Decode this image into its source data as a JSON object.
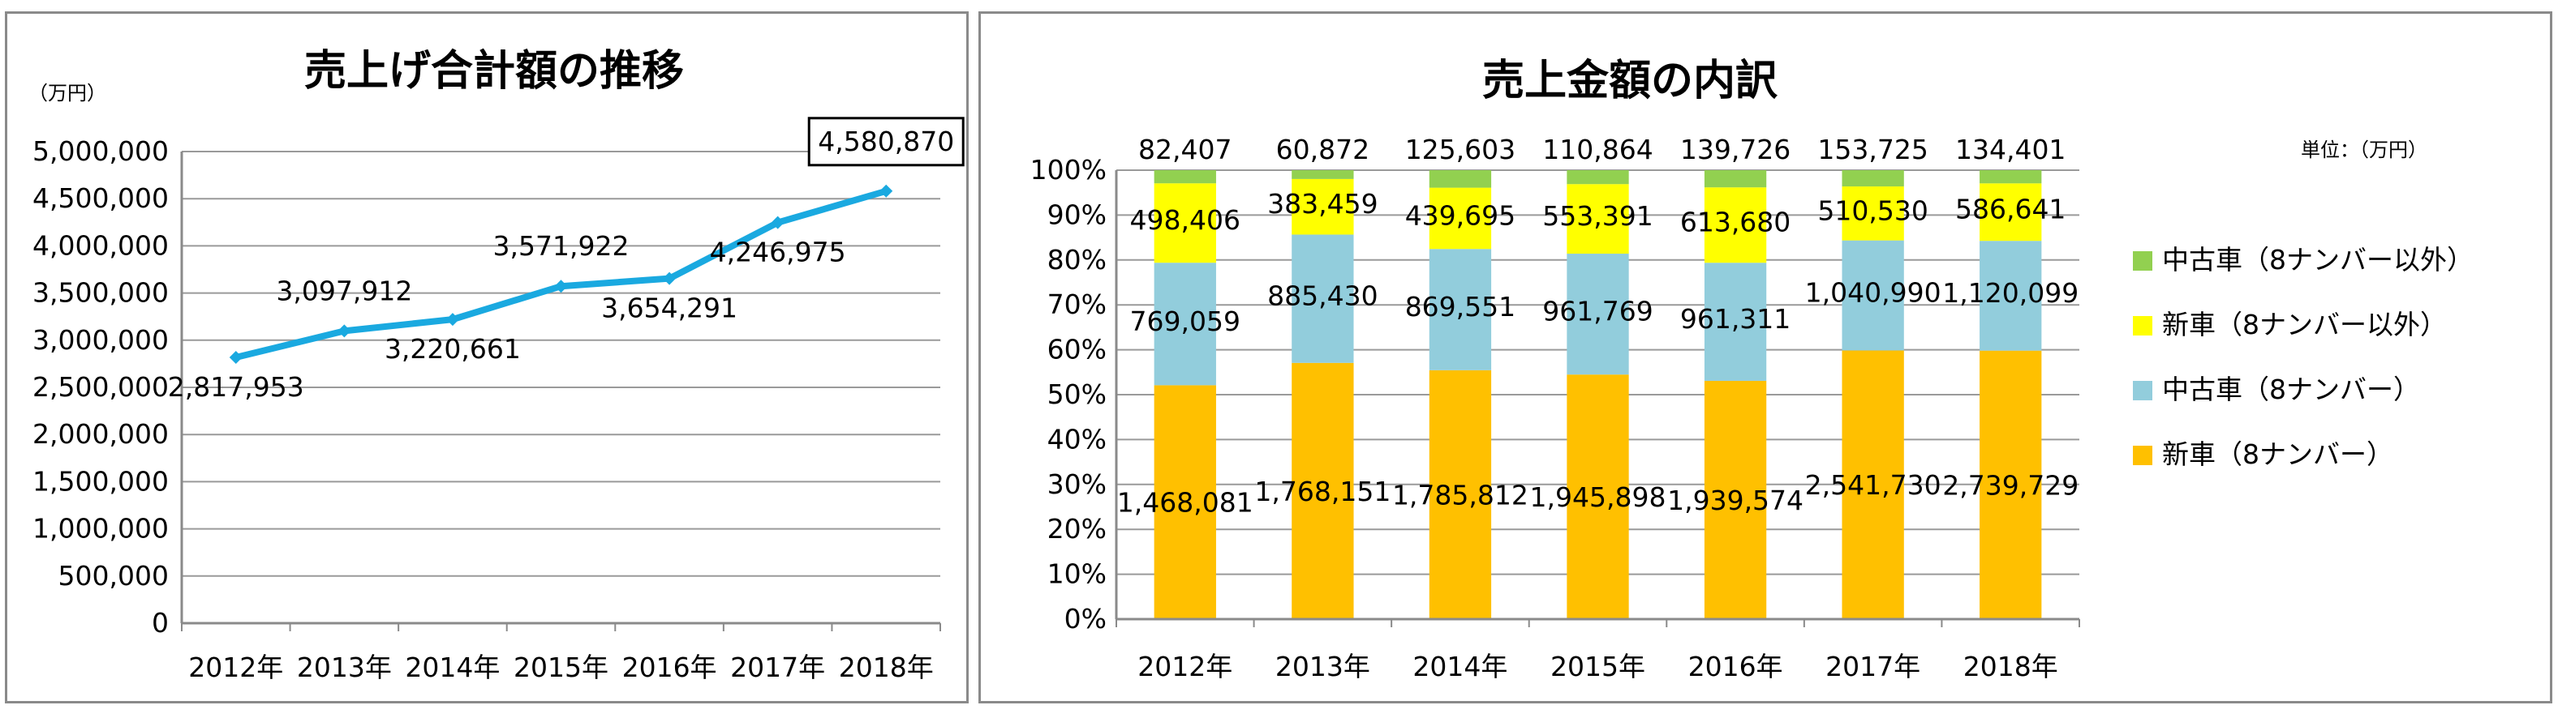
{
  "chart_data": [
    {
      "type": "line",
      "title": "売上げ合計額の推移",
      "unit_label": "（万円）",
      "categories": [
        "2012年",
        "2013年",
        "2014年",
        "2015年",
        "2016年",
        "2017年",
        "2018年"
      ],
      "series": [
        {
          "values": [
            2817953,
            3097912,
            3220661,
            3571922,
            3654291,
            4246975,
            4580870
          ]
        }
      ],
      "value_labels": [
        "2,817,953",
        "3,097,912",
        "3,220,661",
        "3,571,922",
        "3,654,291",
        "4,246,975",
        "4,580,870"
      ],
      "highlighted_label_index": 6,
      "ylim": [
        0,
        5000000
      ],
      "yticks": [
        "0",
        "500,000",
        "1,000,000",
        "1,500,000",
        "2,000,000",
        "2,500,000",
        "3,000,000",
        "3,500,000",
        "4,000,000",
        "4,500,000",
        "5,000,000"
      ],
      "grid": true,
      "line_color": "#1aa9e0"
    },
    {
      "type": "bar",
      "stacked": "percent",
      "title": "売上金額の内訳",
      "unit_label": "単位：（万円）",
      "categories": [
        "2012年",
        "2013年",
        "2014年",
        "2015年",
        "2016年",
        "2017年",
        "2018年"
      ],
      "series": [
        {
          "name": "新車（8ナンバー）",
          "color": "#ffc000",
          "values": [
            1468081,
            1768151,
            1785812,
            1945898,
            1939574,
            2541730,
            2739729
          ],
          "labels": [
            "1,468,081",
            "1,768,151",
            "1,785,812",
            "1,945,898",
            "1,939,574",
            "2,541,730",
            "2,739,729"
          ]
        },
        {
          "name": "中古車（8ナンバー）",
          "color": "#92cddc",
          "values": [
            769059,
            885430,
            869551,
            961769,
            961311,
            1040990,
            1120099
          ],
          "labels": [
            "769,059",
            "885,430",
            "869,551",
            "961,769",
            "961,311",
            "1,040,990",
            "1,120,099"
          ]
        },
        {
          "name": "新車（8ナンバー以外）",
          "color": "#ffff00",
          "values": [
            498406,
            383459,
            439695,
            553391,
            613680,
            510530,
            586641
          ],
          "labels": [
            "498,406",
            "383,459",
            "439,695",
            "553,391",
            "613,680",
            "510,530",
            "586,641"
          ]
        },
        {
          "name": "中古車（8ナンバー以外）",
          "color": "#92d050",
          "values": [
            82407,
            60872,
            125603,
            110864,
            139726,
            153725,
            134401
          ],
          "labels": [
            "82,407",
            "60,872",
            "125,603",
            "110,864",
            "139,726",
            "153,725",
            "134,401"
          ]
        }
      ],
      "yticks": [
        "0%",
        "10%",
        "20%",
        "30%",
        "40%",
        "50%",
        "60%",
        "70%",
        "80%",
        "90%",
        "100%"
      ],
      "ylim": [
        0,
        100
      ],
      "grid": true,
      "legend_position": "right"
    }
  ]
}
